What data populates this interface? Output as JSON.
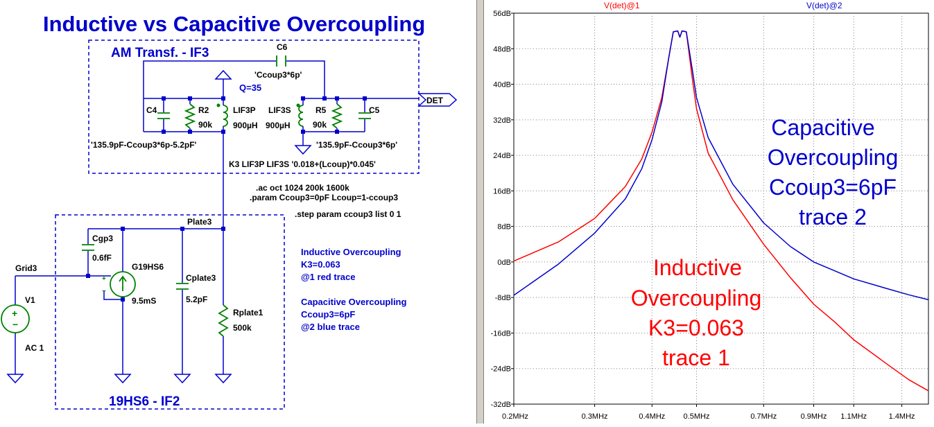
{
  "schematic": {
    "title": "Inductive vs Capacitive Overcoupling",
    "block_top_label": "AM Transf. - IF3",
    "block_bottom_label": "19HS6 - IF2",
    "components": {
      "c6_name": "C6",
      "c6_value": "'Ccoup3*6p'",
      "q_label": "Q=35",
      "c4_name": "C4",
      "c4_value": "'135.9pF-Ccoup3*6p-5.2pF'",
      "r2_name": "R2",
      "r2_value": "90k",
      "lif3p_name": "LIF3P",
      "lif3p_value": "900µH",
      "lif3s_name": "LIF3S",
      "lif3s_value": "900µH",
      "r5_name": "R5",
      "r5_value": "90k",
      "c5_name": "C5",
      "c5_value": "'135.9pF-Ccoup3*6p'",
      "det_label": "DET",
      "k3_line": "K3 LIF3P LIF3S '0.018+(Lcoup)*0.045'",
      "cgp3_name": "Cgp3",
      "cgp3_value": "0.6fF",
      "g19hs6_name": "G19HS6",
      "g19hs6_value": "9.5mS",
      "cplate3_name": "Cplate3",
      "cplate3_value": "5.2pF",
      "rplate1_name": "Rplate1",
      "rplate1_value": "500k",
      "plate3_label": "Plate3",
      "grid3_label": "Grid3",
      "v1_name": "V1",
      "v1_value": "AC 1"
    },
    "directives": [
      ".ac oct 1024 200k 1600k",
      ".param Ccoup3=0pF Lcoup=1-ccoup3",
      ".step param ccoup3  list 0 1"
    ],
    "notes": {
      "ind_title": "Inductive Overcoupling",
      "ind_k": "K3=0.063",
      "ind_trace": "@1 red trace",
      "cap_title": "Capacitive Overcoupling",
      "cap_c": "Ccoup3=6pF",
      "cap_trace": "@2 blue trace"
    }
  },
  "chart_data": {
    "type": "line",
    "trace_labels": [
      "V(det)@1",
      "V(det)@2"
    ],
    "x_scale": "log",
    "x_unit": "MHz",
    "xlim": [
      0.2,
      1.6
    ],
    "x_ticks": [
      "0.2MHz",
      "0.3MHz",
      "0.4MHz",
      "0.5MHz",
      "0.7MHz",
      "0.9MHz",
      "1.1MHz",
      "1.4MHz"
    ],
    "x_tick_values": [
      0.2,
      0.3,
      0.4,
      0.5,
      0.7,
      0.9,
      1.1,
      1.4
    ],
    "ylim": [
      -32,
      56
    ],
    "y_ticks": [
      "56dB",
      "48dB",
      "40dB",
      "32dB",
      "24dB",
      "16dB",
      "8dB",
      "0dB",
      "-8dB",
      "-16dB",
      "-24dB",
      "-32dB"
    ],
    "y_tick_values": [
      56,
      48,
      40,
      32,
      24,
      16,
      8,
      0,
      -8,
      -16,
      -24,
      -32
    ],
    "grid": true,
    "series": [
      {
        "name": "V(det)@1",
        "color": "#ff0000",
        "points": [
          [
            0.2,
            0.2
          ],
          [
            0.25,
            4.5
          ],
          [
            0.3,
            9.8
          ],
          [
            0.35,
            17
          ],
          [
            0.38,
            23.2
          ],
          [
            0.4,
            29.2
          ],
          [
            0.42,
            37
          ],
          [
            0.435,
            46
          ],
          [
            0.445,
            51.8
          ],
          [
            0.455,
            52
          ],
          [
            0.46,
            50.6
          ],
          [
            0.465,
            52
          ],
          [
            0.475,
            51.8
          ],
          [
            0.49,
            41
          ],
          [
            0.5,
            34.5
          ],
          [
            0.53,
            24.5
          ],
          [
            0.6,
            14
          ],
          [
            0.7,
            4
          ],
          [
            0.8,
            -3.5
          ],
          [
            0.9,
            -9.5
          ],
          [
            1.0,
            -13.5
          ],
          [
            1.1,
            -17.5
          ],
          [
            1.3,
            -23
          ],
          [
            1.45,
            -26.5
          ],
          [
            1.6,
            -29
          ]
        ]
      },
      {
        "name": "V(det)@2",
        "color": "#0000cc",
        "points": [
          [
            0.2,
            -7.5
          ],
          [
            0.25,
            -0.5
          ],
          [
            0.3,
            6.5
          ],
          [
            0.35,
            14.2
          ],
          [
            0.38,
            21
          ],
          [
            0.4,
            27.5
          ],
          [
            0.42,
            36
          ],
          [
            0.435,
            46
          ],
          [
            0.445,
            51.8
          ],
          [
            0.455,
            52
          ],
          [
            0.46,
            50.6
          ],
          [
            0.465,
            52
          ],
          [
            0.475,
            51.8
          ],
          [
            0.49,
            43
          ],
          [
            0.5,
            37
          ],
          [
            0.53,
            28
          ],
          [
            0.6,
            17.5
          ],
          [
            0.7,
            8.8
          ],
          [
            0.8,
            3.5
          ],
          [
            0.9,
            0
          ],
          [
            1.0,
            -2
          ],
          [
            1.1,
            -3.8
          ],
          [
            1.3,
            -6
          ],
          [
            1.45,
            -7.4
          ],
          [
            1.6,
            -8.5
          ]
        ]
      }
    ],
    "annotations": {
      "capacitive": [
        "Capacitive",
        "Overcoupling",
        "Ccoup3=6pF",
        "trace 2"
      ],
      "inductive": [
        "Inductive",
        "Overcoupling",
        "K3=0.063",
        "trace 1"
      ]
    }
  },
  "colors": {
    "wire": "#0000cc",
    "component": "#008000",
    "dashed_box": "#0000cc",
    "node": "#0000cc",
    "red_trace": "#ff0000",
    "blue_trace": "#0000cc"
  }
}
